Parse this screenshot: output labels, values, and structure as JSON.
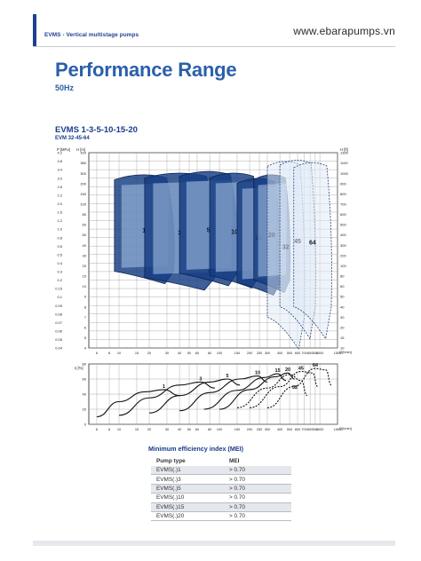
{
  "header": {
    "section_label": "EVMS - Vertical multistage pumps",
    "website": "www.ebarapumps.vn"
  },
  "page": {
    "title": "Performance Range",
    "subtitle": "50Hz"
  },
  "chart_heading": {
    "title": "EVMS 1-3-5-10-15-20",
    "subtitle": "EVM 32-45-64"
  },
  "colors": {
    "brand_blue": "#2b5faa",
    "header_blue": "#1d3f8f",
    "band_dark": "#153c82",
    "band_light": "#a9c4e6"
  },
  "chart_data": [
    {
      "type": "area",
      "subtype": "performance-envelopes",
      "x_scale": "log",
      "y_scale": "log",
      "xlim": [
        5,
        1500
      ],
      "ylim": [
        0.04,
        4.2
      ],
      "x_ticks": [
        "6",
        "8",
        "10",
        "15",
        "20",
        "30",
        "40",
        "50",
        "60",
        "80",
        "100",
        "150",
        "200",
        "250",
        "300",
        "400",
        "500",
        "600",
        "700",
        "800",
        "900",
        "1000",
        "1500"
      ],
      "x_tick_values": [
        6,
        8,
        10,
        15,
        20,
        30,
        40,
        50,
        60,
        80,
        100,
        150,
        200,
        250,
        300,
        400,
        500,
        600,
        700,
        800,
        900,
        1000,
        1500
      ],
      "y_ticks_left_mpa": [
        "4.2",
        "3.8",
        "3.4",
        "3.0",
        "2.6",
        "2.2",
        "2.0",
        "1.6",
        "1.2",
        "1.0",
        "0.8",
        "0.6",
        "0.5",
        "0.4",
        "0.3",
        "0.2",
        "0.15",
        "0.1",
        "0.09",
        "0.08",
        "0.07",
        "0.06",
        "0.05",
        "0.04"
      ],
      "y_ticks_left_m": [
        "420",
        "380",
        "300",
        "200",
        "150",
        "100",
        "80",
        "60",
        "50",
        "40",
        "30",
        "20",
        "15",
        "10",
        "9",
        "8",
        "7",
        "6",
        "5",
        "4"
      ],
      "y_ticks_right_ft": [
        "1300",
        "1100",
        "1000",
        "900",
        "800",
        "700",
        "600",
        "500",
        "400",
        "300",
        "200",
        "100",
        "80",
        "60",
        "50",
        "40",
        "30",
        "20",
        "15",
        "10"
      ],
      "y_axis_left_label": "P [MPa]",
      "y_axis_left2_label": "H [m]",
      "y_axis_right_label": "H [ft]",
      "x_axis_label": "Q[l/min]",
      "series": [
        {
          "name": "1",
          "q_min": 9,
          "q_max": 35,
          "h_top": 2.4,
          "h_bottom": 0.21
        },
        {
          "name": "3",
          "q_min": 18,
          "q_max": 90,
          "h_top": 2.5,
          "h_bottom": 0.18
        },
        {
          "name": "5",
          "q_min": 40,
          "q_max": 150,
          "h_top": 2.6,
          "h_bottom": 0.2
        },
        {
          "name": "10",
          "q_min": 80,
          "q_max": 250,
          "h_top": 2.5,
          "h_bottom": 0.19
        },
        {
          "name": "15",
          "q_min": 150,
          "q_max": 400,
          "h_top": 2.2,
          "h_bottom": 0.16
        },
        {
          "name": "20",
          "q_min": 220,
          "q_max": 500,
          "h_top": 2.4,
          "h_bottom": 0.17
        },
        {
          "name": "32",
          "q_min": 300,
          "q_max": 700,
          "h_top": 3.3,
          "h_bottom": 0.07
        },
        {
          "name": "45",
          "q_min": 400,
          "q_max": 900,
          "h_top": 3.4,
          "h_bottom": 0.09
        },
        {
          "name": "64",
          "q_min": 550,
          "q_max": 1300,
          "h_top": 3.2,
          "h_bottom": 0.09
        }
      ]
    },
    {
      "type": "line",
      "subtype": "efficiency-curves",
      "x_scale": "log",
      "xlim": [
        5,
        1500
      ],
      "ylim": [
        0,
        80
      ],
      "y_ticks": [
        "80",
        "60",
        "40",
        "20",
        "0"
      ],
      "y_axis_label": "η [%]",
      "x_axis_label": "Q[l/min]",
      "x_ticks": [
        "6",
        "8",
        "10",
        "15",
        "20",
        "30",
        "40",
        "50",
        "60",
        "80",
        "100",
        "150",
        "200",
        "250",
        "300",
        "400",
        "500",
        "600",
        "700",
        "800",
        "900",
        "1000",
        "1500"
      ],
      "series": [
        {
          "name": "1",
          "x": [
            6,
            10,
            18,
            28,
            40
          ],
          "y": [
            10,
            30,
            43,
            46,
            38
          ]
        },
        {
          "name": "3",
          "x": [
            10,
            20,
            40,
            65,
            90
          ],
          "y": [
            12,
            35,
            52,
            56,
            48
          ]
        },
        {
          "name": "5",
          "x": [
            20,
            40,
            80,
            120,
            160
          ],
          "y": [
            15,
            38,
            56,
            60,
            52
          ]
        },
        {
          "name": "10",
          "x": [
            40,
            80,
            160,
            240,
            300
          ],
          "y": [
            18,
            42,
            60,
            64,
            56
          ]
        },
        {
          "name": "15",
          "x": [
            70,
            150,
            280,
            380,
            460
          ],
          "y": [
            20,
            45,
            62,
            67,
            58
          ]
        },
        {
          "name": "20",
          "x": [
            100,
            200,
            360,
            480,
            560
          ],
          "y": [
            20,
            46,
            63,
            68,
            60
          ]
        },
        {
          "name": "32",
          "x": [
            150,
            300,
            500,
            650,
            750
          ],
          "y": [
            22,
            48,
            66,
            58,
            38
          ]
        },
        {
          "name": "45",
          "x": [
            200,
            400,
            650,
            850,
            950
          ],
          "y": [
            22,
            50,
            70,
            68,
            50
          ]
        },
        {
          "name": "64",
          "x": [
            300,
            550,
            900,
            1150,
            1300
          ],
          "y": [
            22,
            50,
            74,
            72,
            52
          ]
        }
      ]
    }
  ],
  "mei_table": {
    "title": "Minimum efficiency index (MEI)",
    "columns": [
      "Pump type",
      "MEI"
    ],
    "rows": [
      [
        "EVMS(.)1",
        "> 0.70"
      ],
      [
        "EVMS(.)3",
        "> 0.70"
      ],
      [
        "EVMS(.)5",
        "> 0.70"
      ],
      [
        "EVMS(.)10",
        "> 0.70"
      ],
      [
        "EVMS(.)15",
        "> 0.70"
      ],
      [
        "EVMS(.)20",
        "> 0.70"
      ]
    ]
  }
}
